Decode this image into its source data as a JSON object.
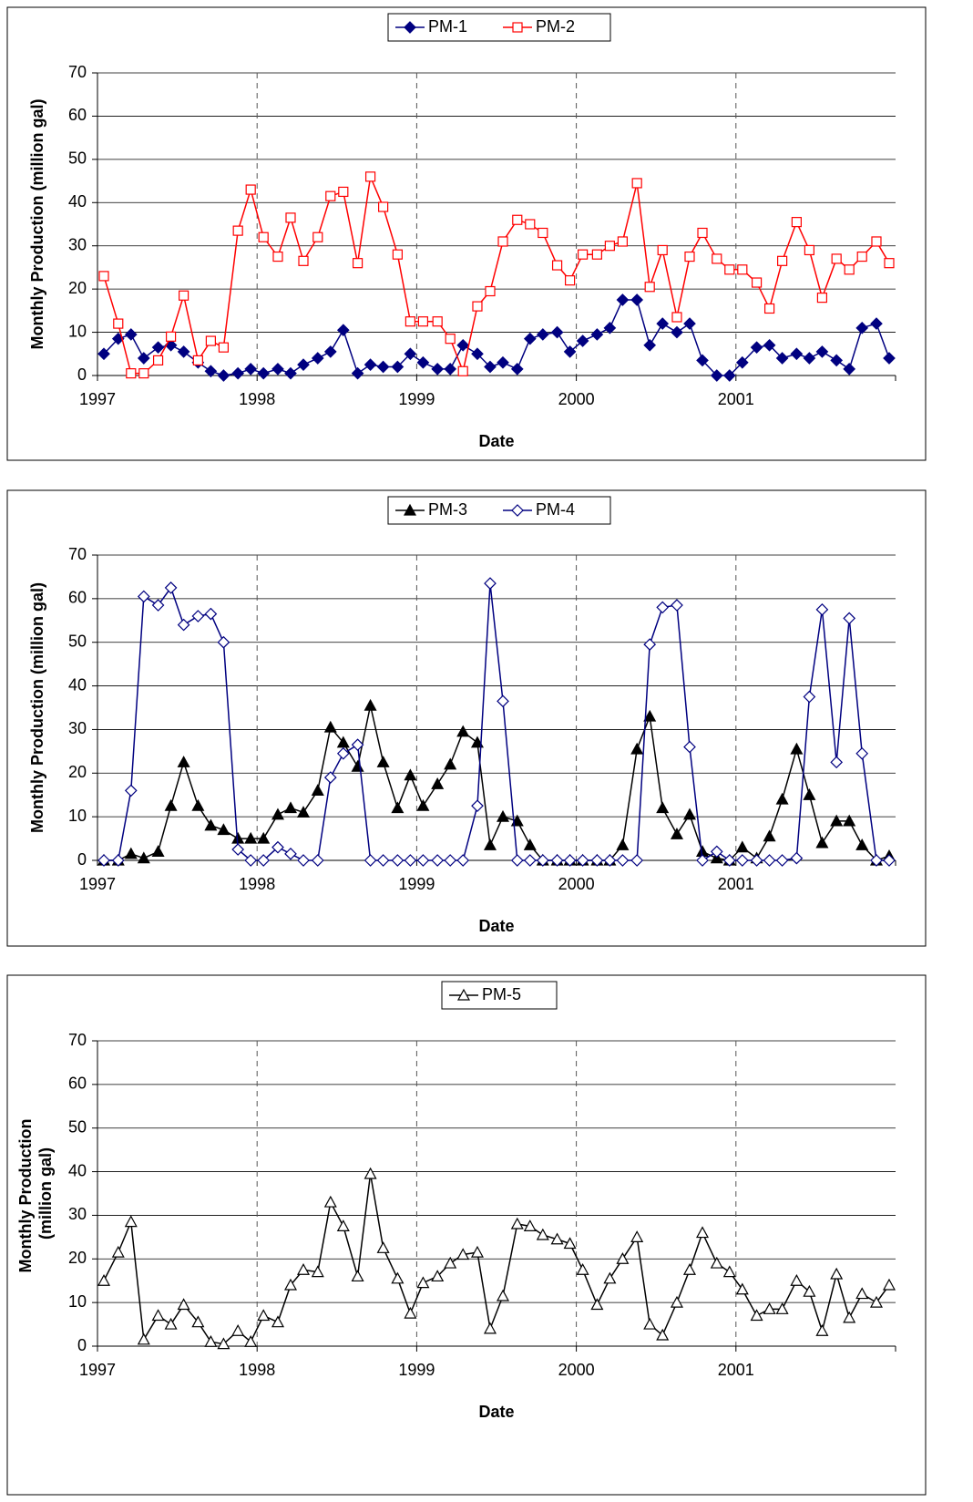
{
  "chart_data": [
    {
      "type": "line",
      "x_label": "Date",
      "y_label": "Monthly Production (million gal)",
      "x": [
        1997.04,
        1997.13,
        1997.21,
        1997.29,
        1997.38,
        1997.46,
        1997.54,
        1997.63,
        1997.71,
        1997.79,
        1997.88,
        1997.96,
        1998.04,
        1998.13,
        1998.21,
        1998.29,
        1998.38,
        1998.46,
        1998.54,
        1998.63,
        1998.71,
        1998.79,
        1998.88,
        1998.96,
        1999.04,
        1999.13,
        1999.21,
        1999.29,
        1999.38,
        1999.46,
        1999.54,
        1999.63,
        1999.71,
        1999.79,
        1999.88,
        1999.96,
        2000.04,
        2000.13,
        2000.21,
        2000.29,
        2000.38,
        2000.46,
        2000.54,
        2000.63,
        2000.71,
        2000.79,
        2000.88,
        2000.96,
        2001.04,
        2001.13,
        2001.21,
        2001.29,
        2001.38,
        2001.46,
        2001.54,
        2001.63,
        2001.71,
        2001.79,
        2001.88,
        2001.96
      ],
      "xlim": [
        1997,
        2002
      ],
      "xticks": [
        1997,
        1998,
        1999,
        2000,
        2001
      ],
      "x_grid": "dashed",
      "ylim": [
        0,
        70
      ],
      "yticks": [
        0,
        10,
        20,
        30,
        40,
        50,
        60,
        70
      ],
      "y_grid": "solid",
      "series": [
        {
          "name": "PM-1",
          "color": "#000080",
          "marker": "diamond",
          "filled": true,
          "values": [
            5,
            8.5,
            9.5,
            4,
            6.5,
            7,
            5.5,
            3,
            1,
            0,
            0.5,
            1.5,
            0.5,
            1.5,
            0.5,
            2.5,
            4,
            5.5,
            10.5,
            0.5,
            2.5,
            2,
            2,
            5,
            3,
            1.5,
            1.5,
            7,
            5,
            2,
            3,
            1.5,
            8.5,
            9.5,
            10,
            5.5,
            8,
            9.5,
            11,
            17.5,
            17.5,
            7,
            12,
            10,
            12,
            3.5,
            0,
            0,
            3,
            6.5,
            7,
            4,
            5,
            4,
            5.5,
            3.5,
            1.5,
            11,
            12,
            4
          ]
        },
        {
          "name": "PM-2",
          "color": "#ff0000",
          "marker": "square",
          "filled": false,
          "values": [
            23,
            12,
            0.5,
            0.5,
            3.5,
            9,
            18.5,
            3.5,
            8,
            6.5,
            33.5,
            43,
            32,
            27.5,
            36.5,
            26.5,
            32,
            41.5,
            42.5,
            26,
            46,
            39,
            28,
            12.5,
            12.5,
            12.5,
            8.5,
            1,
            16,
            19.5,
            31,
            36,
            35,
            33,
            25.5,
            22,
            28,
            28,
            30,
            31,
            44.5,
            20.5,
            29,
            13.5,
            27.5,
            33,
            27,
            24.5,
            24.5,
            21.5,
            15.5,
            26.5,
            35.5,
            29,
            18,
            27,
            24.5,
            27.5,
            31,
            26
          ]
        }
      ]
    },
    {
      "type": "line",
      "x_label": "Date",
      "y_label": "Monthly Production (million gal)",
      "x": [
        1997.04,
        1997.13,
        1997.21,
        1997.29,
        1997.38,
        1997.46,
        1997.54,
        1997.63,
        1997.71,
        1997.79,
        1997.88,
        1997.96,
        1998.04,
        1998.13,
        1998.21,
        1998.29,
        1998.38,
        1998.46,
        1998.54,
        1998.63,
        1998.71,
        1998.79,
        1998.88,
        1998.96,
        1999.04,
        1999.13,
        1999.21,
        1999.29,
        1999.38,
        1999.46,
        1999.54,
        1999.63,
        1999.71,
        1999.79,
        1999.88,
        1999.96,
        2000.04,
        2000.13,
        2000.21,
        2000.29,
        2000.38,
        2000.46,
        2000.54,
        2000.63,
        2000.71,
        2000.79,
        2000.88,
        2000.96,
        2001.04,
        2001.13,
        2001.21,
        2001.29,
        2001.38,
        2001.46,
        2001.54,
        2001.63,
        2001.71,
        2001.79,
        2001.88,
        2001.96
      ],
      "xlim": [
        1997,
        2002
      ],
      "xticks": [
        1997,
        1998,
        1999,
        2000,
        2001
      ],
      "x_grid": "dashed",
      "ylim": [
        0,
        70
      ],
      "yticks": [
        0,
        10,
        20,
        30,
        40,
        50,
        60,
        70
      ],
      "y_grid": "solid",
      "series": [
        {
          "name": "PM-3",
          "color": "#000000",
          "marker": "triangle",
          "filled": true,
          "values": [
            0,
            0,
            1.5,
            0.5,
            2,
            12.5,
            22.5,
            12.5,
            8,
            7,
            5,
            5,
            5,
            10.5,
            12,
            11,
            16,
            30.5,
            27,
            21.5,
            35.5,
            22.5,
            12,
            19.5,
            12.5,
            17.5,
            22,
            29.5,
            27,
            3.5,
            10,
            9,
            3.5,
            0,
            0,
            0,
            0,
            0,
            0,
            3.5,
            25.5,
            33,
            12,
            6,
            10.5,
            2,
            0.5,
            0,
            3,
            0.5,
            5.5,
            14,
            25.5,
            15,
            4,
            9,
            9,
            3.5,
            0,
            1
          ]
        },
        {
          "name": "PM-4",
          "color": "#000080",
          "marker": "diamond",
          "filled": false,
          "values": [
            0,
            0,
            16,
            60.5,
            58.5,
            62.5,
            54,
            56,
            56.5,
            50,
            2.5,
            0,
            0,
            3,
            1.5,
            0,
            0,
            19,
            24.5,
            26.5,
            0,
            0,
            0,
            0,
            0,
            0,
            0,
            0,
            12.5,
            63.5,
            36.5,
            0,
            0,
            0,
            0,
            0,
            0,
            0,
            0,
            0,
            0,
            49.5,
            58,
            58.5,
            26,
            0,
            2,
            0,
            0,
            0,
            0,
            0,
            0.5,
            37.5,
            57.5,
            22.5,
            55.5,
            24.5,
            0,
            0
          ]
        }
      ]
    },
    {
      "type": "line",
      "x_label": "Date",
      "y_label": "Monthly Production (million gal)",
      "x": [
        1997.04,
        1997.13,
        1997.21,
        1997.29,
        1997.38,
        1997.46,
        1997.54,
        1997.63,
        1997.71,
        1997.79,
        1997.88,
        1997.96,
        1998.04,
        1998.13,
        1998.21,
        1998.29,
        1998.38,
        1998.46,
        1998.54,
        1998.63,
        1998.71,
        1998.79,
        1998.88,
        1998.96,
        1999.04,
        1999.13,
        1999.21,
        1999.29,
        1999.38,
        1999.46,
        1999.54,
        1999.63,
        1999.71,
        1999.79,
        1999.88,
        1999.96,
        2000.04,
        2000.13,
        2000.21,
        2000.29,
        2000.38,
        2000.46,
        2000.54,
        2000.63,
        2000.71,
        2000.79,
        2000.88,
        2000.96,
        2001.04,
        2001.13,
        2001.21,
        2001.29,
        2001.38,
        2001.46,
        2001.54,
        2001.63,
        2001.71,
        2001.79,
        2001.88,
        2001.96
      ],
      "xlim": [
        1997,
        2002
      ],
      "xticks": [
        1997,
        1998,
        1999,
        2000,
        2001
      ],
      "x_grid": "dashed",
      "ylim": [
        0,
        70
      ],
      "yticks": [
        0,
        10,
        20,
        30,
        40,
        50,
        60,
        70
      ],
      "y_grid": "solid",
      "series": [
        {
          "name": "PM-5",
          "color": "#000000",
          "marker": "triangle",
          "filled": false,
          "values": [
            15,
            21.5,
            28.5,
            1.5,
            7,
            5,
            9.5,
            5.5,
            1,
            0.5,
            3.5,
            1,
            7,
            5.5,
            14,
            17.5,
            17,
            33,
            27.5,
            16,
            39.5,
            22.5,
            15.5,
            7.5,
            14.5,
            16,
            19,
            21,
            21.5,
            4,
            11.5,
            28,
            27.5,
            25.5,
            24.5,
            23.5,
            17.5,
            9.5,
            15.5,
            20,
            25,
            5,
            2.5,
            10,
            17.5,
            26,
            19,
            17,
            13,
            7,
            8.5,
            8.5,
            15,
            12.5,
            3.5,
            16.5,
            6.5,
            12,
            10,
            14
          ]
        }
      ]
    }
  ]
}
